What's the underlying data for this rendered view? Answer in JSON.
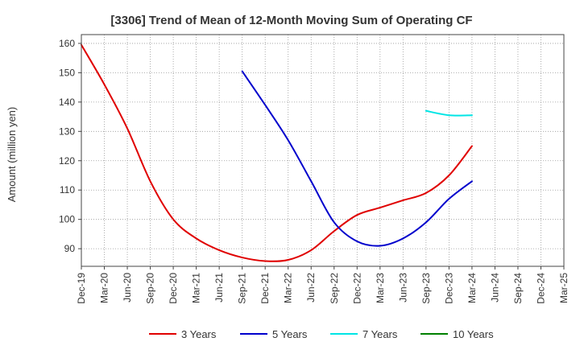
{
  "chart_data": {
    "type": "line",
    "title": "[3306]  Trend of Mean of 12-Month Moving Sum of Operating CF",
    "xlabel": "",
    "ylabel": "Amount (million yen)",
    "ylim": [
      84,
      163
    ],
    "yticks": [
      90,
      100,
      110,
      120,
      130,
      140,
      150,
      160
    ],
    "grid": true,
    "legend_position": "bottom",
    "categories": [
      "Dec-19",
      "Mar-20",
      "Jun-20",
      "Sep-20",
      "Dec-20",
      "Mar-21",
      "Jun-21",
      "Sep-21",
      "Dec-21",
      "Mar-22",
      "Jun-22",
      "Sep-22",
      "Dec-22",
      "Mar-23",
      "Jun-23",
      "Sep-23",
      "Dec-23",
      "Mar-24",
      "Jun-24",
      "Sep-24",
      "Dec-24",
      "Mar-25"
    ],
    "series": [
      {
        "name": "3 Years",
        "color": "#e00000",
        "values": [
          159.5,
          146,
          131,
          113,
          100,
          93.5,
          89.5,
          87,
          85.8,
          86.2,
          89.5,
          96,
          101.5,
          104,
          106.5,
          109,
          115,
          125,
          null,
          null,
          null,
          null
        ]
      },
      {
        "name": "5 Years",
        "color": "#0000cc",
        "values": [
          null,
          null,
          null,
          null,
          null,
          null,
          null,
          150.5,
          139,
          127,
          113,
          99,
          92.5,
          91,
          93.5,
          99,
          107,
          113,
          null,
          null,
          null,
          null
        ]
      },
      {
        "name": "7 Years",
        "color": "#00e5e5",
        "values": [
          null,
          null,
          null,
          null,
          null,
          null,
          null,
          null,
          null,
          null,
          null,
          null,
          null,
          null,
          null,
          137,
          135.5,
          135.5,
          null,
          null,
          null,
          null
        ]
      },
      {
        "name": "10 Years",
        "color": "#008000",
        "values": [
          null,
          null,
          null,
          null,
          null,
          null,
          null,
          null,
          null,
          null,
          null,
          null,
          null,
          null,
          null,
          null,
          null,
          null,
          null,
          null,
          null,
          null
        ]
      }
    ]
  }
}
